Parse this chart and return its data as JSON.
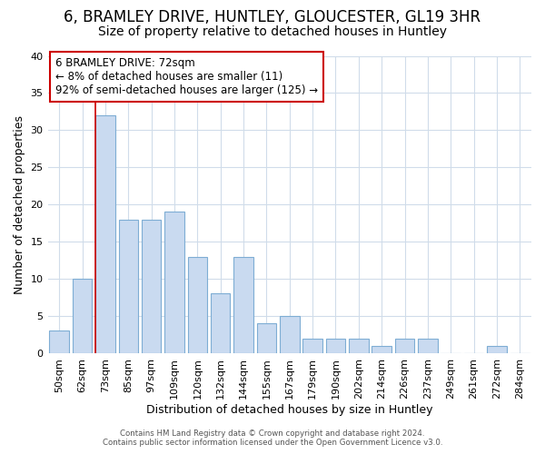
{
  "title1": "6, BRAMLEY DRIVE, HUNTLEY, GLOUCESTER, GL19 3HR",
  "title2": "Size of property relative to detached houses in Huntley",
  "xlabel": "Distribution of detached houses by size in Huntley",
  "ylabel": "Number of detached properties",
  "categories": [
    "50sqm",
    "62sqm",
    "73sqm",
    "85sqm",
    "97sqm",
    "109sqm",
    "120sqm",
    "132sqm",
    "144sqm",
    "155sqm",
    "167sqm",
    "179sqm",
    "190sqm",
    "202sqm",
    "214sqm",
    "226sqm",
    "237sqm",
    "249sqm",
    "261sqm",
    "272sqm",
    "284sqm"
  ],
  "values": [
    3,
    10,
    32,
    18,
    18,
    19,
    13,
    8,
    13,
    4,
    5,
    2,
    2,
    2,
    1,
    2,
    2,
    0,
    0,
    1,
    0
  ],
  "bar_color": "#c9daf0",
  "bar_edge_color": "#7eadd4",
  "annotation_line1": "6 BRAMLEY DRIVE: 72sqm",
  "annotation_line2": "← 8% of detached houses are smaller (11)",
  "annotation_line3": "92% of semi-detached houses are larger (125) →",
  "annotation_box_color": "#ffffff",
  "annotation_box_edge_color": "#cc0000",
  "red_line_color": "#cc0000",
  "ylim": [
    0,
    40
  ],
  "yticks": [
    0,
    5,
    10,
    15,
    20,
    25,
    30,
    35,
    40
  ],
  "footer1": "Contains HM Land Registry data © Crown copyright and database right 2024.",
  "footer2": "Contains public sector information licensed under the Open Government Licence v3.0.",
  "bg_color": "#ffffff",
  "grid_color": "#d0dcea",
  "title1_fontsize": 12,
  "title2_fontsize": 10,
  "label_fontsize": 9,
  "tick_fontsize": 8,
  "annotation_fontsize": 8.5
}
